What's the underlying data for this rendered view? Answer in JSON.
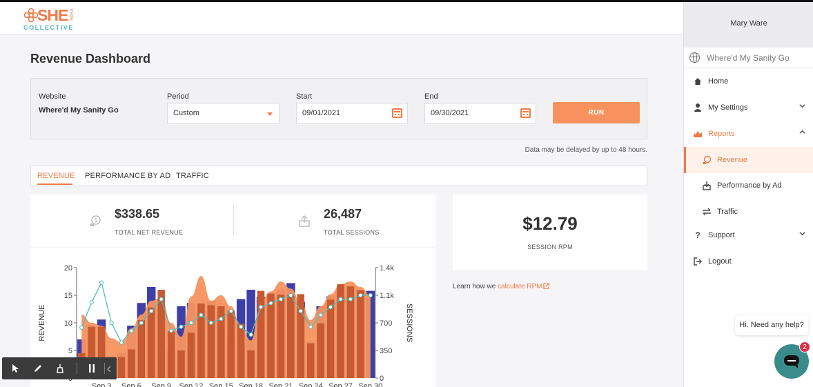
{
  "header": {
    "logo_she": "SHE",
    "logo_media": "media",
    "logo_collective": "COLLECTIVE"
  },
  "page_title": "Revenue Dashboard",
  "filters": {
    "website_label": "Website",
    "website_value": "Where'd My Sanity Go",
    "period_label": "Period",
    "period_value": "Custom",
    "start_label": "Start",
    "start_value": "09/01/2021",
    "end_label": "End",
    "end_value": "09/30/2021",
    "run_label": "RUN"
  },
  "delay_note": "Data may be delayed by up to 48 hours.",
  "tabs": [
    {
      "label": "REVENUE",
      "active": true
    },
    {
      "label": "PERFORMANCE BY AD",
      "active": false
    },
    {
      "label": "TRAFFIC",
      "active": false
    }
  ],
  "stats": {
    "revenue_value": "$338.65",
    "revenue_label": "TOTAL NET REVENUE",
    "sessions_value": "26,487",
    "sessions_label": "TOTAL SESSIONS"
  },
  "rpm": {
    "value": "$12.79",
    "label": "SESSION RPM",
    "learn_text": "Learn how we ",
    "learn_link": "calculate RPM"
  },
  "sidebar": {
    "user": "Mary Ware",
    "site": "Where'd My Sanity Go",
    "items": [
      {
        "label": "Home",
        "icon": "home-icon"
      },
      {
        "label": "My Settings",
        "icon": "user-icon"
      },
      {
        "label": "Reports",
        "icon": "chart-icon"
      },
      {
        "label": "Revenue",
        "icon": "money-icon"
      },
      {
        "label": "Performance by Ad",
        "icon": "ad-icon"
      },
      {
        "label": "Traffic",
        "icon": "arrows-icon"
      },
      {
        "label": "Support",
        "icon": "question-icon"
      },
      {
        "label": "Logout",
        "icon": "logout-icon"
      }
    ]
  },
  "chat": {
    "help_text": "Hi. Need any help?",
    "badge": "2"
  },
  "chart_data": {
    "type": "bar",
    "ylabel": "REVENUE",
    "y2label": "SESSIONS",
    "ylim": [
      0,
      20
    ],
    "y2lim": [
      0,
      1400
    ],
    "yticks": [
      "0",
      "5",
      "10",
      "15",
      "20"
    ],
    "y2ticks": [
      "0",
      "350",
      "700",
      "1.1k",
      "1.4k"
    ],
    "xticks": [
      "Sep 3",
      "Sep 6",
      "Sep 9",
      "Sep 12",
      "Sep 15",
      "Sep 18",
      "Sep 21",
      "Sep 24",
      "Sep 27",
      "Sep 30"
    ],
    "x": [
      1,
      2,
      3,
      4,
      5,
      6,
      7,
      8,
      9,
      10,
      11,
      12,
      13,
      14,
      15,
      16,
      17,
      18,
      19,
      20,
      21,
      22,
      23,
      24,
      25,
      26,
      27,
      28,
      29,
      30
    ],
    "series": [
      {
        "name": "",
        "kind": "bar",
        "color": "#3f3fa8",
        "values": [
          7.0,
          9.3,
          10.6,
          4.0,
          4.5,
          9.5,
          13.6,
          16.5,
          12.4,
          5.0,
          13.0,
          13.6,
          12.4,
          13.9,
          12.0,
          6.5,
          14.3,
          16.0,
          14.7,
          15.0,
          16.0,
          17.2,
          13.8,
          6.6,
          13.0,
          14.8,
          16.0,
          16.5,
          16.0,
          15.8
        ]
      },
      {
        "name": "",
        "kind": "bar",
        "color": "#c65a33",
        "values": [
          4.5,
          9.3,
          9.3,
          3.0,
          3.8,
          5.2,
          10.5,
          12.8,
          16.0,
          8.5,
          5.0,
          8.2,
          13.5,
          13.2,
          13.0,
          12.2,
          9.8,
          5.0,
          15.8,
          15.3,
          15.1,
          15.0,
          15.2,
          6.3,
          9.9,
          14.2,
          17.0,
          16.6,
          15.9,
          0
        ]
      },
      {
        "name": "",
        "kind": "area",
        "color": "#f7925f",
        "values": [
          11.5,
          10.0,
          9.5,
          7.2,
          6.5,
          9.0,
          11.5,
          14.0,
          14.6,
          10.0,
          7.5,
          14.8,
          18.5,
          14.0,
          15.0,
          13.0,
          9.3,
          6.8,
          14.0,
          15.7,
          17.5,
          16.2,
          13.8,
          10.5,
          13.0,
          15.2,
          17.0,
          17.5,
          16.5,
          15.0
        ]
      },
      {
        "name": "",
        "kind": "line",
        "axis": "y2",
        "color": "#4fbcbc",
        "values": [
          640,
          960,
          1210,
          700,
          450,
          600,
          700,
          850,
          1000,
          600,
          650,
          700,
          800,
          700,
          750,
          850,
          650,
          550,
          900,
          950,
          1000,
          1050,
          850,
          650,
          800,
          900,
          1000,
          1000,
          1050,
          1050
        ]
      }
    ]
  }
}
